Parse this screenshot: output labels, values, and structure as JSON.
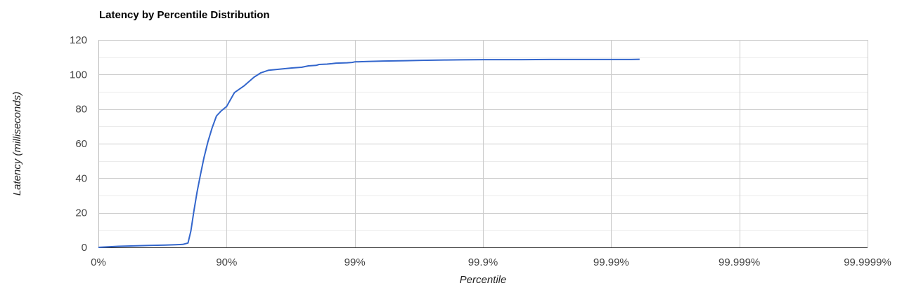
{
  "chart_data": {
    "type": "line",
    "title": "Latency by Percentile Distribution",
    "xlabel": "Percentile",
    "ylabel": "Latency (milliseconds)",
    "x_scale": "inverse-log (percentile nines)",
    "x_ticks": [
      "0%",
      "90%",
      "99%",
      "99.9%",
      "99.99%",
      "99.999%",
      "99.9999%"
    ],
    "y_ticks": [
      "0",
      "20",
      "40",
      "60",
      "80",
      "100",
      "120"
    ],
    "ylim": [
      0,
      120
    ],
    "xlim": [
      0,
      99.9999
    ],
    "grid": true,
    "legend": "none",
    "series": [
      {
        "color": "#3366cc",
        "x": [
          0,
          30,
          50,
          60,
          70,
          75,
          78,
          80,
          81,
          82,
          83,
          84,
          85,
          86,
          87,
          88,
          89,
          90,
          91.3,
          92.7,
          93.9,
          94.6,
          95.3,
          96.3,
          96.9,
          97.4,
          97.7,
          98,
          98.1,
          98.35,
          98.5,
          98.6,
          98.85,
          98.95,
          99,
          99.2,
          99.4,
          99.6,
          99.7,
          99.8,
          99.85,
          99.9,
          99.93,
          99.95,
          99.97,
          99.98,
          99.99,
          99.993,
          99.994
        ],
        "y": [
          0,
          0.6,
          0.9,
          1.1,
          1.3,
          1.5,
          1.7,
          2.5,
          9.5,
          21,
          32,
          42,
          52,
          61,
          69,
          76,
          79,
          81.5,
          89.5,
          93.5,
          98.5,
          101,
          102.5,
          103.2,
          103.8,
          104.2,
          105,
          105.3,
          105.8,
          106,
          106.3,
          106.6,
          106.8,
          107,
          107.3,
          107.5,
          107.8,
          108,
          108.2,
          108.4,
          108.5,
          108.6,
          108.6,
          108.6,
          108.7,
          108.7,
          108.7,
          108.7,
          108.8
        ]
      }
    ]
  }
}
